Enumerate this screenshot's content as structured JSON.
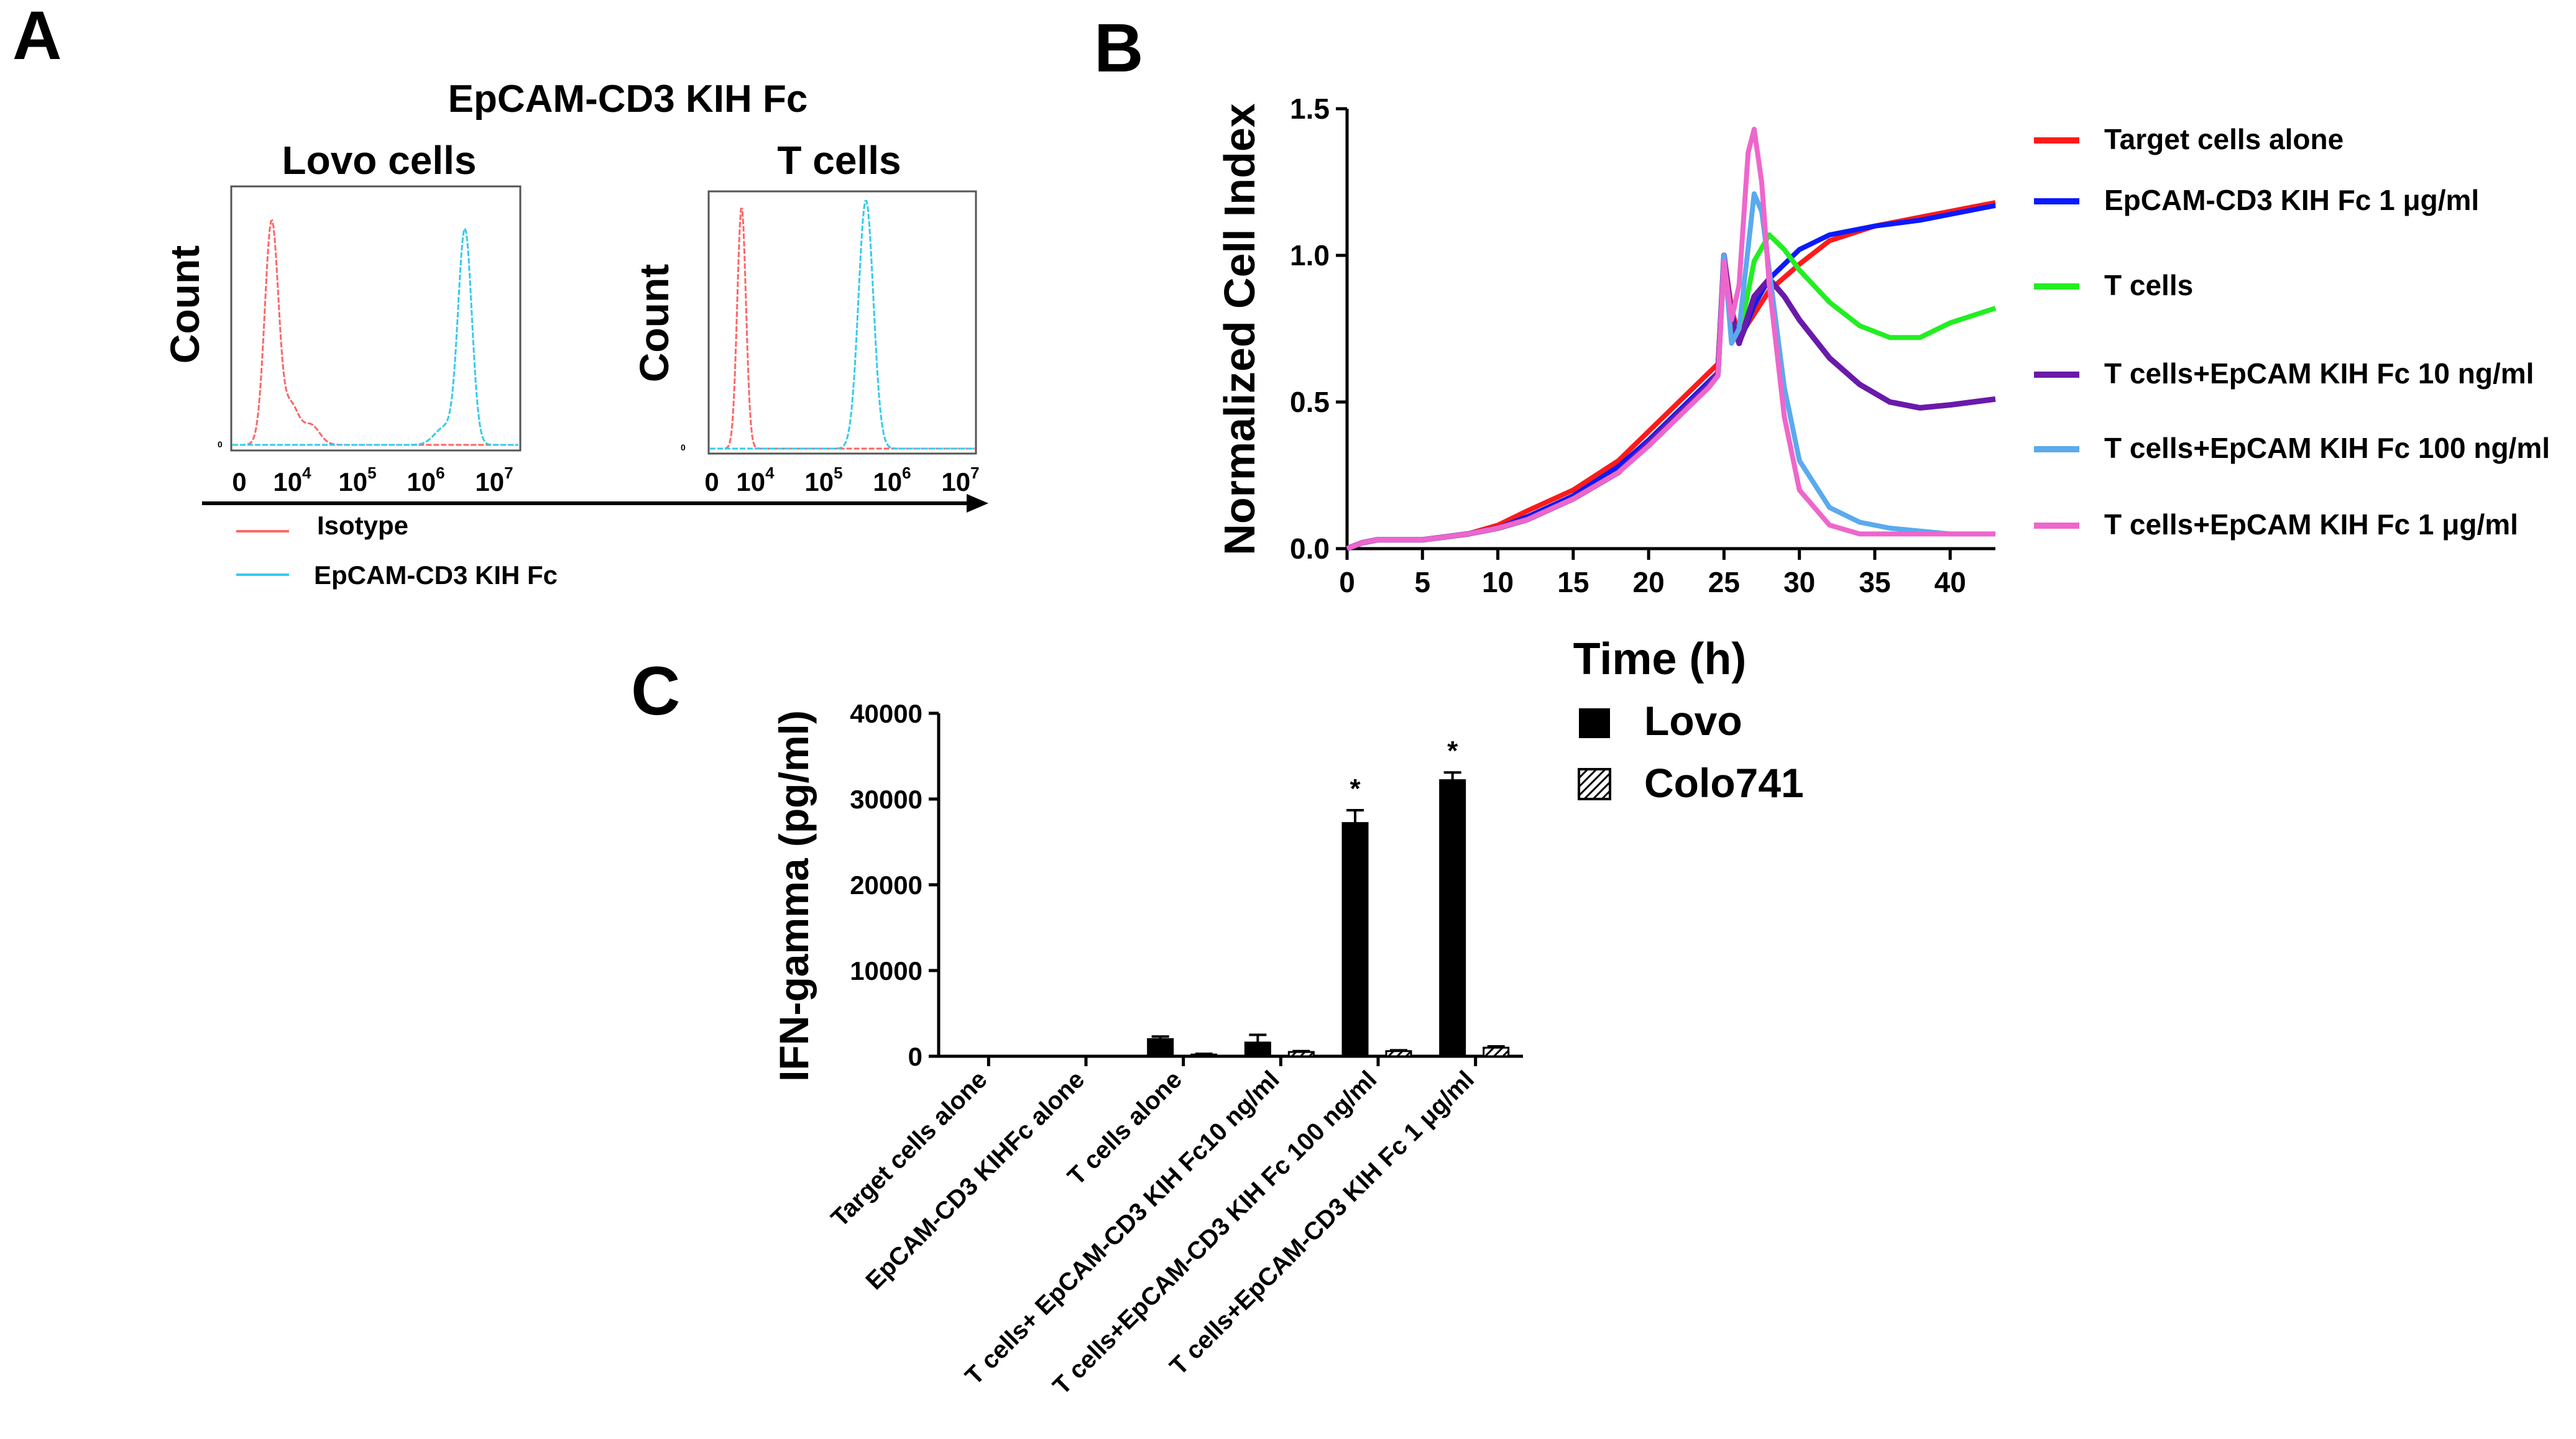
{
  "panelA": {
    "label": "A",
    "title": "EpCAM-CD3 KIH Fc",
    "left": {
      "title": "Lovo cells",
      "ylabel": "Count",
      "zero": "0",
      "ticks": [
        "0",
        "10",
        "10",
        "10",
        "10"
      ],
      "tick_exps": [
        "",
        "4",
        "5",
        "6",
        "7"
      ]
    },
    "right": {
      "title": "T cells",
      "ylabel": "Count",
      "zero": "0",
      "ticks": [
        "0",
        "10",
        "10",
        "10",
        "10"
      ],
      "tick_exps": [
        "",
        "4",
        "5",
        "6",
        "7"
      ]
    },
    "legend": [
      {
        "label": "Isotype",
        "color": "#ff6666"
      },
      {
        "label": "EpCAM-CD3 KIH Fc",
        "color": "#33ccee"
      }
    ]
  },
  "panelB": {
    "label": "B",
    "chart_data": {
      "type": "line",
      "xlabel": "Time (h)",
      "ylabel": "Normalized Cell Index",
      "xlim": [
        0,
        43
      ],
      "ylim": [
        0,
        1.5
      ],
      "xticks": [
        0,
        5,
        10,
        15,
        20,
        25,
        30,
        35,
        40
      ],
      "yticks": [
        0.0,
        0.5,
        1.0,
        1.5
      ],
      "ytick_labels": [
        "0.0",
        "0.5",
        "1.0",
        "1.5"
      ],
      "series": [
        {
          "name": "Target cells alone",
          "color": "#ff1a1a",
          "x": [
            0,
            1,
            2,
            5,
            8,
            10,
            12,
            15,
            18,
            20,
            22,
            24,
            24.6,
            25,
            25.5,
            26,
            27,
            28,
            30,
            32,
            35,
            38,
            40,
            43
          ],
          "y": [
            0.0,
            0.02,
            0.03,
            0.03,
            0.05,
            0.08,
            0.13,
            0.2,
            0.3,
            0.4,
            0.5,
            0.6,
            0.63,
            1.0,
            0.82,
            0.72,
            0.8,
            0.88,
            0.97,
            1.05,
            1.1,
            1.13,
            1.15,
            1.18
          ]
        },
        {
          "name": "EpCAM-CD3 KIH Fc 1 μg/ml",
          "color": "#0a1aff",
          "x": [
            0,
            1,
            2,
            5,
            8,
            10,
            12,
            15,
            18,
            20,
            22,
            24,
            24.6,
            25,
            25.5,
            26,
            27,
            28,
            30,
            32,
            35,
            38,
            40,
            43
          ],
          "y": [
            0.0,
            0.02,
            0.03,
            0.03,
            0.05,
            0.07,
            0.11,
            0.18,
            0.28,
            0.37,
            0.47,
            0.57,
            0.6,
            1.0,
            0.8,
            0.7,
            0.83,
            0.92,
            1.02,
            1.07,
            1.1,
            1.12,
            1.14,
            1.17
          ]
        },
        {
          "name": "T cells",
          "color": "#22ee22",
          "x": [
            0,
            1,
            2,
            5,
            8,
            10,
            12,
            15,
            18,
            20,
            22,
            24,
            24.6,
            25,
            25.5,
            26,
            27,
            28,
            29,
            30,
            32,
            34,
            36,
            38,
            40,
            43
          ],
          "y": [
            0.0,
            0.02,
            0.03,
            0.03,
            0.05,
            0.07,
            0.1,
            0.17,
            0.26,
            0.35,
            0.45,
            0.55,
            0.59,
            0.98,
            0.78,
            0.72,
            0.98,
            1.07,
            1.02,
            0.95,
            0.84,
            0.76,
            0.72,
            0.72,
            0.77,
            0.82
          ]
        },
        {
          "name": "T cells+EpCAM KIH Fc 10 ng/ml",
          "color": "#6a1aaa",
          "x": [
            0,
            1,
            2,
            5,
            8,
            10,
            12,
            15,
            18,
            20,
            22,
            24,
            24.6,
            25,
            25.5,
            26,
            27,
            28,
            29,
            30,
            32,
            34,
            36,
            38,
            40,
            43
          ],
          "y": [
            0.0,
            0.02,
            0.03,
            0.03,
            0.05,
            0.07,
            0.1,
            0.17,
            0.26,
            0.36,
            0.46,
            0.56,
            0.6,
            1.0,
            0.78,
            0.7,
            0.86,
            0.92,
            0.86,
            0.78,
            0.65,
            0.56,
            0.5,
            0.48,
            0.49,
            0.51
          ]
        },
        {
          "name": "T cells+EpCAM KIH Fc 100 ng/ml",
          "color": "#5aaaee",
          "x": [
            0,
            1,
            2,
            5,
            8,
            10,
            12,
            15,
            18,
            20,
            22,
            24,
            24.6,
            25,
            25.5,
            26,
            27,
            27.5,
            28,
            29,
            30,
            32,
            34,
            36,
            38,
            40,
            43
          ],
          "y": [
            0.0,
            0.02,
            0.03,
            0.03,
            0.05,
            0.07,
            0.1,
            0.17,
            0.26,
            0.35,
            0.45,
            0.55,
            0.59,
            1.0,
            0.7,
            0.75,
            1.21,
            1.15,
            0.95,
            0.55,
            0.3,
            0.14,
            0.09,
            0.07,
            0.06,
            0.05,
            0.05
          ]
        },
        {
          "name": "T cells+EpCAM KIH Fc 1 μg/ml",
          "color": "#ee66cc",
          "x": [
            0,
            1,
            2,
            5,
            8,
            10,
            12,
            15,
            18,
            20,
            22,
            24,
            24.6,
            25,
            25.5,
            26,
            26.6,
            27,
            27.5,
            28,
            29,
            30,
            32,
            34,
            36,
            38,
            40,
            43
          ],
          "y": [
            0.0,
            0.02,
            0.03,
            0.03,
            0.05,
            0.07,
            0.1,
            0.17,
            0.26,
            0.35,
            0.45,
            0.55,
            0.59,
            0.98,
            0.78,
            0.9,
            1.35,
            1.43,
            1.25,
            0.9,
            0.45,
            0.2,
            0.08,
            0.05,
            0.05,
            0.05,
            0.05,
            0.05
          ]
        }
      ]
    }
  },
  "panelC": {
    "label": "C",
    "chart_data": {
      "type": "bar",
      "ylabel": "IFN-gamma (pg/ml)",
      "ylim": [
        0,
        40000
      ],
      "yticks": [
        0,
        10000,
        20000,
        30000,
        40000
      ],
      "categories": [
        "Target cells alone",
        "EpCAM-CD3 KIHFc alone",
        "T cells alone",
        "T cells+ EpCAM-CD3 KIH Fc10 ng/ml",
        "T cells+EpCAM-CD3 KIH Fc 100 ng/ml",
        "T cells+EpCAM-CD3 KIH Fc 1 μg/ml"
      ],
      "series": [
        {
          "name": "Lovo",
          "values": [
            0,
            0,
            2000,
            1600,
            27200,
            32200
          ],
          "errors": [
            0,
            0,
            300,
            900,
            1500,
            900
          ]
        },
        {
          "name": "Colo741",
          "values": [
            0,
            0,
            200,
            500,
            600,
            1000
          ],
          "errors": [
            0,
            0,
            80,
            100,
            100,
            150
          ]
        }
      ],
      "annotations": [
        "*",
        "*"
      ]
    }
  }
}
